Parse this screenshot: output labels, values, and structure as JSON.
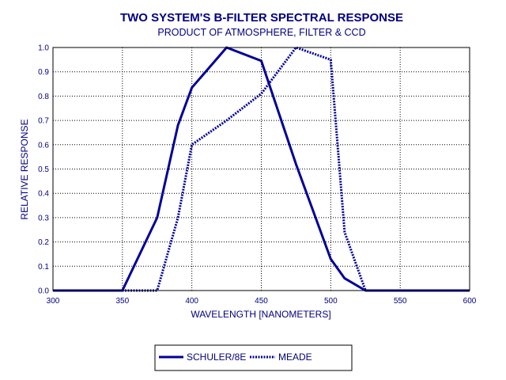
{
  "chart_data": {
    "type": "line",
    "title": "TWO SYSTEM'S B-FILTER SPECTRAL RESPONSE",
    "subtitle": "PRODUCT OF ATMOSPHERE, FILTER & CCD",
    "xlabel": "WAVELENGTH [NANOMETERS]",
    "ylabel": "RELATIVE RESPONSE",
    "xlim": [
      300,
      600
    ],
    "ylim": [
      0,
      1
    ],
    "x_ticks": [
      300,
      350,
      400,
      450,
      500,
      550,
      600
    ],
    "y_ticks": [
      0.0,
      0.1,
      0.2,
      0.3,
      0.4,
      0.5,
      0.6,
      0.7,
      0.8,
      0.9,
      1.0
    ],
    "grid": true,
    "legend_position": "bottom-center",
    "colors": {
      "text": "#000080",
      "series": "#000099",
      "grid": "#000000",
      "frame": "#000000"
    },
    "series": [
      {
        "name": "SCHULER/8E",
        "style": "solid",
        "x": [
          300,
          350,
          375,
          390,
          400,
          425,
          450,
          475,
          500,
          510,
          525,
          600
        ],
        "y": [
          0,
          0,
          0.3,
          0.68,
          0.835,
          1.0,
          0.945,
          0.52,
          0.13,
          0.05,
          0,
          0
        ]
      },
      {
        "name": "MEADE",
        "style": "dotted",
        "x": [
          300,
          375,
          390,
          400,
          425,
          450,
          475,
          500,
          510,
          525,
          600
        ],
        "y": [
          0,
          0,
          0.3,
          0.6,
          0.7,
          0.81,
          1.0,
          0.95,
          0.24,
          0,
          0
        ]
      }
    ]
  }
}
